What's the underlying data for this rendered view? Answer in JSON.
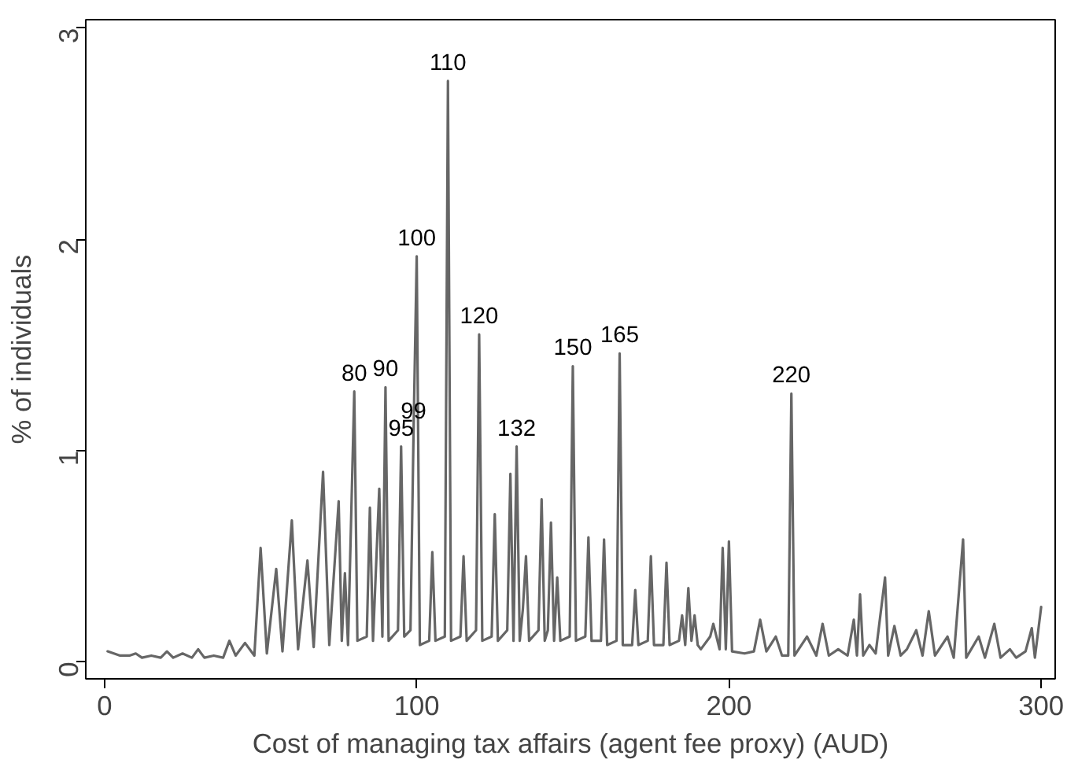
{
  "chart_data": {
    "type": "line",
    "xlabel": "Cost of managing tax affairs (agent fee proxy) (AUD)",
    "ylabel": "% of individuals",
    "xlim": [
      -6,
      304.5
    ],
    "ylim": [
      -0.08,
      3.04
    ],
    "xticks": [
      0,
      100,
      200,
      300
    ],
    "yticks": [
      0,
      1,
      2,
      3
    ],
    "grid": false,
    "series": [
      {
        "color": "#666666",
        "x": [
          1,
          3,
          5,
          8,
          10,
          12,
          15,
          18,
          20,
          22,
          25,
          28,
          30,
          32,
          35,
          38,
          40,
          42,
          45,
          48,
          50,
          52,
          55,
          57,
          60,
          62,
          65,
          67,
          70,
          72,
          75,
          76,
          77,
          78,
          80,
          81,
          84,
          85,
          86,
          88,
          89,
          90,
          91,
          94,
          95,
          96,
          98,
          99,
          100,
          101,
          104,
          105,
          106,
          109,
          110,
          111,
          114,
          115,
          116,
          119,
          120,
          121,
          124,
          125,
          126,
          129,
          130,
          131,
          132,
          133,
          134,
          135,
          136,
          139,
          140,
          141,
          142,
          143,
          144,
          145,
          146,
          149,
          150,
          151,
          154,
          155,
          156,
          159,
          160,
          161,
          164,
          165,
          166,
          169,
          170,
          171,
          174,
          175,
          176,
          179,
          180,
          181,
          184,
          185,
          186,
          187,
          188,
          189,
          190,
          191,
          194,
          195,
          197,
          198,
          199,
          200,
          201,
          205,
          208,
          210,
          212,
          215,
          217,
          219,
          220,
          221,
          225,
          228,
          230,
          232,
          235,
          238,
          240,
          241,
          242,
          243,
          245,
          247,
          250,
          251,
          253,
          255,
          257,
          260,
          262,
          264,
          266,
          270,
          272,
          275,
          276,
          280,
          282,
          285,
          287,
          290,
          292,
          295,
          297,
          298,
          300
        ],
        "values": [
          0.05,
          0.04,
          0.03,
          0.03,
          0.04,
          0.02,
          0.03,
          0.02,
          0.05,
          0.02,
          0.04,
          0.02,
          0.06,
          0.02,
          0.03,
          0.02,
          0.1,
          0.03,
          0.09,
          0.03,
          0.54,
          0.04,
          0.44,
          0.05,
          0.67,
          0.06,
          0.48,
          0.07,
          0.9,
          0.08,
          0.76,
          0.1,
          0.42,
          0.08,
          1.28,
          0.1,
          0.12,
          0.73,
          0.1,
          0.82,
          0.12,
          1.3,
          0.1,
          0.15,
          1.02,
          0.12,
          0.15,
          1.1,
          1.92,
          0.08,
          0.1,
          0.52,
          0.1,
          0.12,
          2.75,
          0.1,
          0.12,
          0.5,
          0.1,
          0.15,
          1.55,
          0.1,
          0.12,
          0.7,
          0.1,
          0.15,
          0.89,
          0.1,
          1.02,
          0.1,
          0.25,
          0.5,
          0.1,
          0.15,
          0.77,
          0.1,
          0.15,
          0.66,
          0.1,
          0.4,
          0.1,
          0.12,
          1.4,
          0.1,
          0.12,
          0.59,
          0.1,
          0.1,
          0.58,
          0.08,
          0.1,
          1.46,
          0.08,
          0.08,
          0.34,
          0.08,
          0.1,
          0.5,
          0.08,
          0.08,
          0.47,
          0.08,
          0.1,
          0.22,
          0.08,
          0.35,
          0.1,
          0.22,
          0.08,
          0.06,
          0.12,
          0.18,
          0.06,
          0.54,
          0.06,
          0.57,
          0.05,
          0.04,
          0.05,
          0.2,
          0.05,
          0.12,
          0.03,
          0.03,
          1.27,
          0.03,
          0.12,
          0.03,
          0.18,
          0.03,
          0.06,
          0.03,
          0.2,
          0.03,
          0.32,
          0.03,
          0.08,
          0.04,
          0.4,
          0.03,
          0.17,
          0.03,
          0.06,
          0.15,
          0.03,
          0.24,
          0.03,
          0.12,
          0.02,
          0.58,
          0.02,
          0.12,
          0.02,
          0.18,
          0.02,
          0.06,
          0.02,
          0.05,
          0.16,
          0.02,
          0.26
        ]
      }
    ],
    "annotations": [
      {
        "text": "80",
        "x": 80,
        "y": 1.28
      },
      {
        "text": "90",
        "x": 90,
        "y": 1.3
      },
      {
        "text": "95",
        "x": 95,
        "y": 1.02
      },
      {
        "text": "99",
        "x": 99,
        "y": 1.1
      },
      {
        "text": "100",
        "x": 100,
        "y": 1.92
      },
      {
        "text": "110",
        "x": 110,
        "y": 2.75
      },
      {
        "text": "120",
        "x": 120,
        "y": 1.55
      },
      {
        "text": "132",
        "x": 132,
        "y": 1.02
      },
      {
        "text": "150",
        "x": 150,
        "y": 1.4
      },
      {
        "text": "165",
        "x": 165,
        "y": 1.46
      },
      {
        "text": "220",
        "x": 220,
        "y": 1.27
      }
    ]
  }
}
